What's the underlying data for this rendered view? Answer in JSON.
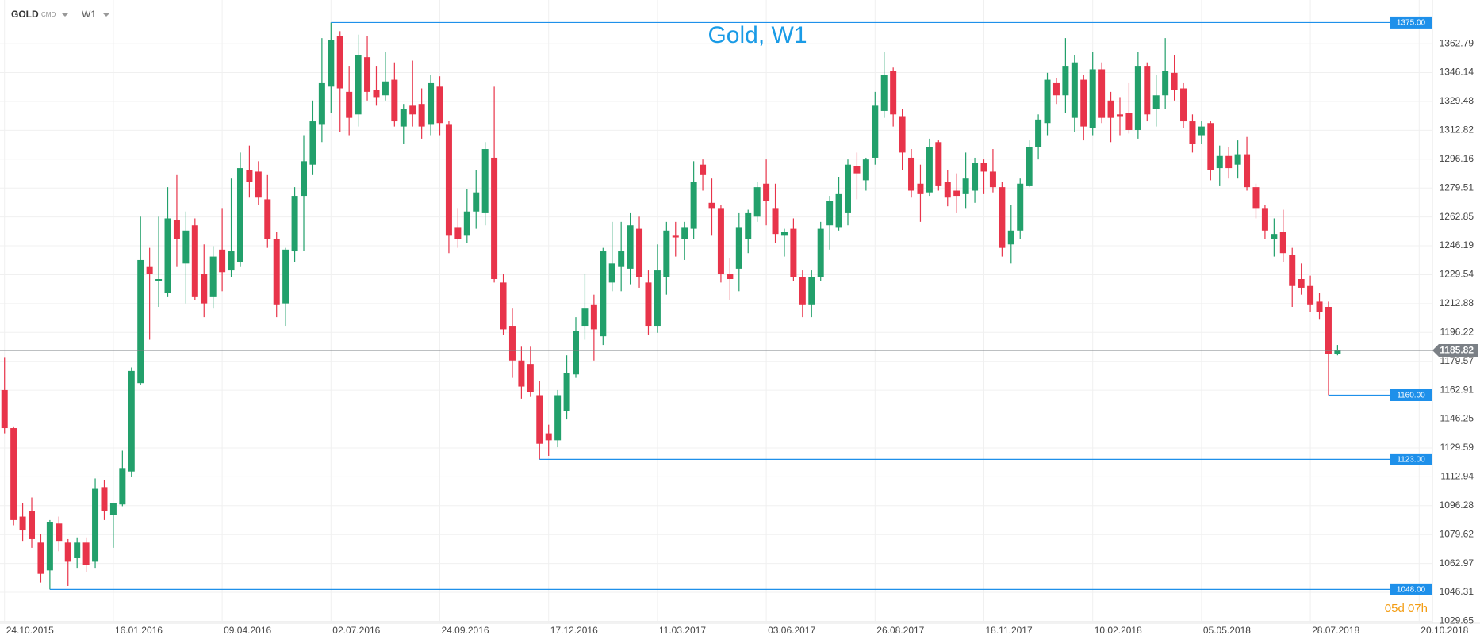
{
  "header": {
    "symbol": "GOLD",
    "market": "CMD",
    "timeframe": "W1"
  },
  "countdown": "05d 07h",
  "chart_data": {
    "type": "candlestick",
    "title": "Gold, W1",
    "categories": [
      "24.10.2015",
      null,
      null,
      null,
      null,
      null,
      null,
      null,
      null,
      null,
      null,
      null,
      "16.01.2016",
      null,
      null,
      null,
      null,
      null,
      null,
      null,
      null,
      null,
      null,
      null,
      "09.04.2016",
      null,
      null,
      null,
      null,
      null,
      null,
      null,
      null,
      null,
      null,
      null,
      "02.07.2016",
      null,
      null,
      null,
      null,
      null,
      null,
      null,
      null,
      null,
      null,
      null,
      "24.09.2016",
      null,
      null,
      null,
      null,
      null,
      null,
      null,
      null,
      null,
      null,
      null,
      "17.12.2016",
      null,
      null,
      null,
      null,
      null,
      null,
      null,
      null,
      null,
      null,
      null,
      "11.03.2017",
      null,
      null,
      null,
      null,
      null,
      null,
      null,
      null,
      null,
      null,
      null,
      "03.06.2017",
      null,
      null,
      null,
      null,
      null,
      null,
      null,
      null,
      null,
      null,
      null,
      "26.08.2017",
      null,
      null,
      null,
      null,
      null,
      null,
      null,
      null,
      null,
      null,
      null,
      "18.11.2017",
      null,
      null,
      null,
      null,
      null,
      null,
      null,
      null,
      null,
      null,
      null,
      "10.02.2018",
      null,
      null,
      null,
      null,
      null,
      null,
      null,
      null,
      null,
      null,
      null,
      "05.05.2018",
      null,
      null,
      null,
      null,
      null,
      null,
      null,
      null,
      null,
      null,
      null,
      "28.07.2018",
      null,
      null,
      null,
      null,
      null,
      null,
      null,
      null,
      null,
      null,
      null,
      "20.10.2018"
    ],
    "open": [
      1163,
      1141,
      1090,
      1093,
      1075,
      1059,
      1086,
      1075,
      1066,
      1075,
      1064,
      1107,
      1091,
      1097,
      1116,
      1167,
      1234,
      1226,
      1219,
      1261,
      1236,
      1258,
      1230,
      1217,
      1244,
      1232,
      1237,
      1290,
      1289,
      1273,
      1250,
      1213,
      1243,
      1275,
      1293,
      1316,
      1338,
      1367,
      1335,
      1322,
      1355,
      1336,
      1333,
      1342,
      1315,
      1327,
      1328,
      1316,
      1338,
      1316,
      1257,
      1252,
      1266,
      1265,
      1297,
      1225,
      1200,
      1180,
      1178,
      1160,
      1138,
      1134,
      1151,
      1172,
      1200,
      1212,
      1194,
      1225,
      1234,
      1233,
      1256,
      1225,
      1200,
      1228,
      1252,
      1250,
      1256,
      1293,
      1271,
      1268,
      1230,
      1233,
      1250,
      1263,
      1282,
      1268,
      1252,
      1256,
      1228,
      1212,
      1228,
      1258,
      1257,
      1265,
      1292,
      1284,
      1297,
      1324,
      1347,
      1321,
      1297,
      1282,
      1277,
      1306,
      1283,
      1278,
      1276,
      1278,
      1294,
      1289,
      1280,
      1247,
      1255,
      1281,
      1303,
      1317,
      1340,
      1333,
      1320,
      1342,
      1314,
      1348,
      1330,
      1322,
      1323,
      1313,
      1350,
      1325,
      1333,
      1346,
      1337,
      1318,
      1310,
      1317,
      1291,
      1298,
      1293,
      1299,
      1280,
      1268,
      1250,
      1254,
      1241,
      1227,
      1223,
      1214,
      1211,
      1184,
      null,
      null,
      null,
      null,
      null,
      null,
      null,
      null,
      null
    ],
    "high": [
      1182,
      1142,
      1098,
      1101,
      1080,
      1088,
      1090,
      1077,
      1078,
      1078,
      1112,
      1111,
      1098,
      1128,
      1176,
      1263,
      1245,
      1263,
      1280,
      1287,
      1266,
      1262,
      1247,
      1246,
      1268,
      1285,
      1300,
      1304,
      1295,
      1287,
      1254,
      1245,
      1280,
      1310,
      1330,
      1366,
      1375,
      1370,
      1350,
      1368,
      1367,
      1350,
      1358,
      1352,
      1328,
      1353,
      1337,
      1345,
      1344,
      1318,
      1268,
      1279,
      1290,
      1306,
      1338,
      1230,
      1210,
      1188,
      1188,
      1168,
      1143,
      1163,
      1183,
      1205,
      1230,
      1218,
      1245,
      1260,
      1260,
      1265,
      1263,
      1232,
      1247,
      1260,
      1260,
      1260,
      1295,
      1296,
      1285,
      1270,
      1239,
      1265,
      1267,
      1283,
      1296,
      1282,
      1256,
      1262,
      1232,
      1232,
      1260,
      1275,
      1286,
      1296,
      1300,
      1297,
      1335,
      1358,
      1349,
      1325,
      1302,
      1293,
      1308,
      1307,
      1290,
      1288,
      1300,
      1297,
      1296,
      1302,
      1283,
      1270,
      1285,
      1307,
      1322,
      1346,
      1343,
      1366,
      1356,
      1345,
      1358,
      1352,
      1335,
      1332,
      1340,
      1358,
      1352,
      1345,
      1366,
      1356,
      1340,
      1322,
      1318,
      1318,
      1304,
      1303,
      1307,
      1309,
      1282,
      1270,
      1262,
      1267,
      1245,
      1236,
      1229,
      1219,
      1214,
      1189,
      null,
      null,
      null,
      null,
      null,
      null,
      null,
      null,
      null
    ],
    "low": [
      1138,
      1085,
      1076,
      1072,
      1052,
      1048,
      1070,
      1050,
      1060,
      1058,
      1060,
      1088,
      1072,
      1096,
      1113,
      1166,
      1192,
      1211,
      1217,
      1234,
      1213,
      1215,
      1205,
      1210,
      1220,
      1228,
      1234,
      1274,
      1270,
      1245,
      1205,
      1200,
      1237,
      1243,
      1287,
      1306,
      1323,
      1312,
      1310,
      1315,
      1330,
      1327,
      1330,
      1315,
      1305,
      1315,
      1308,
      1310,
      1310,
      1242,
      1245,
      1248,
      1256,
      1258,
      1225,
      1195,
      1170,
      1158,
      1159,
      1123,
      1125,
      1130,
      1146,
      1170,
      1192,
      1180,
      1189,
      1220,
      1220,
      1224,
      1222,
      1195,
      1196,
      1218,
      1240,
      1238,
      1250,
      1278,
      1252,
      1225,
      1215,
      1220,
      1242,
      1260,
      1258,
      1248,
      1240,
      1226,
      1205,
      1205,
      1226,
      1244,
      1255,
      1258,
      1273,
      1278,
      1293,
      1320,
      1315,
      1290,
      1274,
      1260,
      1275,
      1278,
      1269,
      1265,
      1268,
      1271,
      1276,
      1277,
      1240,
      1236,
      1250,
      1280,
      1296,
      1310,
      1328,
      1323,
      1312,
      1307,
      1310,
      1317,
      1306,
      1310,
      1311,
      1308,
      1318,
      1315,
      1325,
      1330,
      1314,
      1300,
      1305,
      1284,
      1281,
      1285,
      1285,
      1278,
      1262,
      1250,
      1240,
      1237,
      1211,
      1218,
      1208,
      1204,
      1160,
      1183,
      null,
      null,
      null,
      null,
      null,
      null,
      null,
      null,
      null
    ],
    "close": [
      1141,
      1088,
      1082,
      1077,
      1057,
      1087,
      1076,
      1064,
      1075,
      1062,
      1106,
      1093,
      1098,
      1118,
      1174,
      1238,
      1230,
      1227,
      1262,
      1250,
      1255,
      1217,
      1213,
      1240,
      1231,
      1243,
      1291,
      1283,
      1274,
      1250,
      1212,
      1244,
      1275,
      1295,
      1318,
      1340,
      1365,
      1337,
      1320,
      1356,
      1335,
      1332,
      1341,
      1318,
      1325,
      1322,
      1315,
      1340,
      1317,
      1252,
      1250,
      1266,
      1277,
      1302,
      1227,
      1198,
      1180,
      1165,
      1162,
      1132,
      1134,
      1160,
      1173,
      1197,
      1210,
      1198,
      1243,
      1236,
      1243,
      1258,
      1228,
      1200,
      1232,
      1255,
      1251,
      1257,
      1283,
      1287,
      1268,
      1230,
      1227,
      1257,
      1265,
      1280,
      1272,
      1253,
      1254,
      1228,
      1212,
      1228,
      1256,
      1272,
      1276,
      1293,
      1288,
      1296,
      1327,
      1345,
      1322,
      1300,
      1278,
      1276,
      1303,
      1281,
      1274,
      1275,
      1285,
      1294,
      1289,
      1280,
      1245,
      1255,
      1282,
      1303,
      1319,
      1342,
      1333,
      1350,
      1352,
      1315,
      1348,
      1320,
      1320,
      1321,
      1313,
      1350,
      1322,
      1333,
      1347,
      1336,
      1318,
      1305,
      1315,
      1290,
      1298,
      1291,
      1299,
      1280,
      1268,
      1255,
      1253,
      1242,
      1223,
      1222,
      1212,
      1208,
      1184,
      1185.82,
      null,
      null,
      null,
      null,
      null,
      null,
      null,
      null,
      null
    ],
    "up_color": "#22a06b",
    "down_color": "#e8344a",
    "ylim": [
      1028.5,
      1388
    ],
    "yticks": [
      1362.79,
      1346.14,
      1329.48,
      1312.82,
      1296.16,
      1279.51,
      1262.85,
      1246.19,
      1229.54,
      1212.88,
      1196.22,
      1179.57,
      1162.91,
      1146.25,
      1129.59,
      1112.94,
      1096.28,
      1079.62,
      1062.97,
      1046.31,
      1029.65
    ],
    "grid": true,
    "levels": [
      {
        "value": 1375,
        "label": "1375.00"
      },
      {
        "value": 1160,
        "label": "1160.00"
      },
      {
        "value": 1123,
        "label": "1123.00"
      },
      {
        "value": 1048,
        "label": "1048.00"
      }
    ],
    "level_color": "#1e90ea",
    "last_price": 1185.82,
    "last_price_color": "#7b8086"
  }
}
